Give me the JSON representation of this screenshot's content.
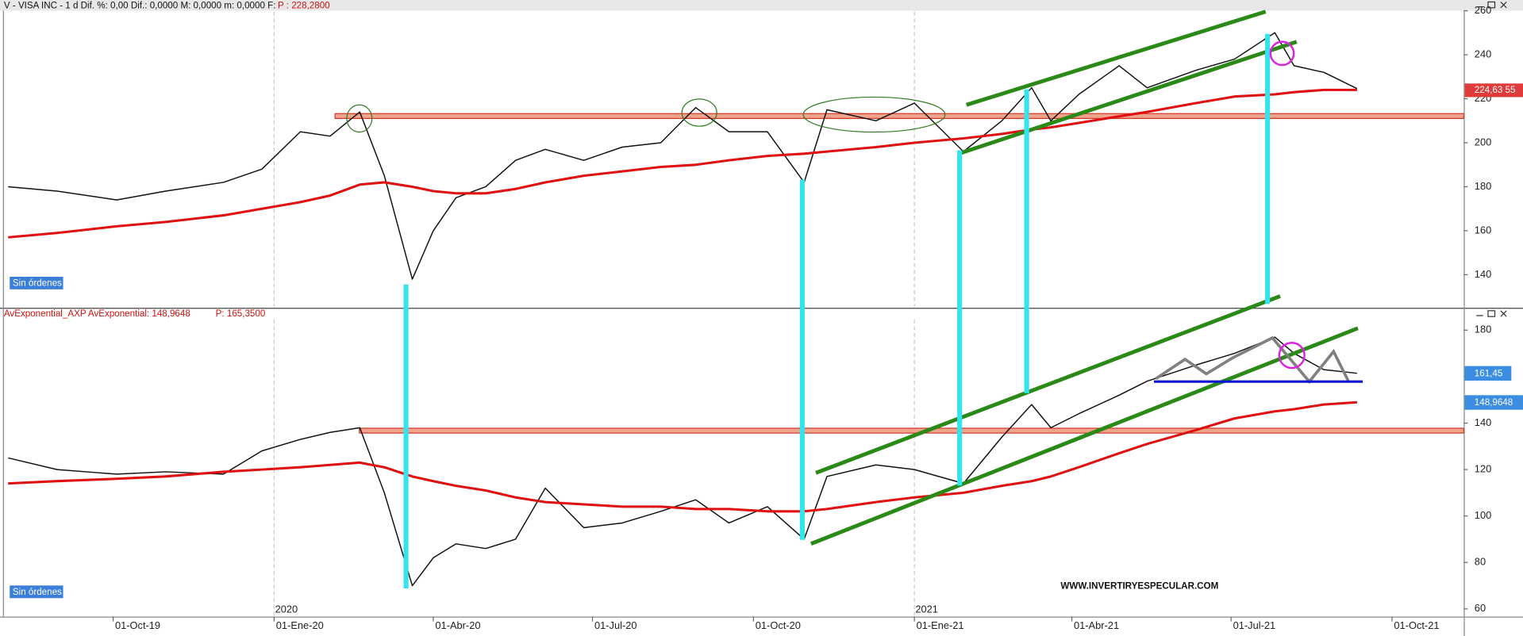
{
  "chart_data": [
    {
      "type": "line",
      "title": "V - VISA INC -  1 d  Dif. %: 0,00  Dif.: 0,0000  M: 0,0000  m: 0,0000  F:",
      "price_label": "P : 228,2800",
      "x": [
        "2019-08-02",
        "2019-08-30",
        "2019-10-03",
        "2019-10-31",
        "2019-12-03",
        "2019-12-25",
        "2020-01-16",
        "2020-02-02",
        "2020-02-19",
        "2020-03-04",
        "2020-03-20",
        "2020-04-01",
        "2020-04-14",
        "2020-05-01",
        "2020-05-18",
        "2020-06-04",
        "2020-06-26",
        "2020-07-18",
        "2020-08-09",
        "2020-08-29",
        "2020-09-17",
        "2020-10-09",
        "2020-10-30",
        "2020-11-12",
        "2020-12-10",
        "2021-01-01",
        "2021-01-29",
        "2021-02-20",
        "2021-03-09",
        "2021-03-20",
        "2021-04-05",
        "2021-04-28",
        "2021-05-14",
        "2021-06-11",
        "2021-07-03",
        "2021-07-26",
        "2021-08-06",
        "2021-08-23",
        "2021-09-11"
      ],
      "series": [
        {
          "color": "#111111",
          "values": [
            180,
            178,
            174,
            178,
            182,
            188,
            205,
            203,
            214,
            185,
            138,
            160,
            175,
            180,
            192,
            197,
            192,
            198,
            200,
            216,
            205,
            205,
            182,
            215,
            210,
            218,
            196,
            210,
            225,
            210,
            222,
            235,
            225,
            233,
            238,
            250,
            235,
            232,
            224.63
          ]
        },
        {
          "color": "#e01010",
          "values": [
            157,
            159,
            162,
            164,
            167,
            170,
            173,
            176,
            181,
            182,
            180,
            178,
            177,
            177,
            179,
            182,
            185,
            187,
            189,
            190,
            192,
            194,
            195,
            196,
            198,
            200,
            202,
            204,
            206,
            207,
            209,
            212,
            214,
            218,
            221,
            222,
            223,
            224,
            224
          ]
        }
      ],
      "xlim": [
        "2019-07-30",
        "2021-11-11"
      ],
      "ylim": [
        125.4,
        259.6
      ],
      "yticks": [
        140,
        160,
        180,
        200,
        220,
        240,
        260
      ],
      "price_tag": "224,63 55",
      "badge": "Sin órdenes"
    },
    {
      "type": "line",
      "title": "AvExponential_AXP AvExponential: 148,9648",
      "price_label": "P: 165,3500",
      "x": [
        "2019-08-02",
        "2019-08-30",
        "2019-10-03",
        "2019-10-31",
        "2019-12-03",
        "2019-12-25",
        "2020-01-16",
        "2020-02-02",
        "2020-02-19",
        "2020-03-04",
        "2020-03-20",
        "2020-04-01",
        "2020-04-14",
        "2020-05-01",
        "2020-05-18",
        "2020-06-04",
        "2020-06-26",
        "2020-07-18",
        "2020-08-09",
        "2020-08-29",
        "2020-09-17",
        "2020-10-09",
        "2020-10-30",
        "2020-11-12",
        "2020-12-10",
        "2021-01-01",
        "2021-01-29",
        "2021-02-20",
        "2021-03-09",
        "2021-03-20",
        "2021-04-05",
        "2021-04-28",
        "2021-05-14",
        "2021-06-11",
        "2021-07-03",
        "2021-07-26",
        "2021-08-06",
        "2021-08-23",
        "2021-09-11"
      ],
      "series": [
        {
          "color": "#111111",
          "values": [
            125,
            120,
            118,
            119,
            118,
            128,
            133,
            136,
            138,
            110,
            70,
            82,
            88,
            86,
            90,
            112,
            95,
            97,
            102,
            107,
            97,
            104,
            90,
            117,
            122,
            120,
            114,
            134,
            148,
            138,
            144,
            152,
            158,
            165,
            170,
            177,
            170,
            163,
            161.45
          ]
        },
        {
          "color": "#e01010",
          "values": [
            114,
            115,
            116,
            117,
            119,
            120,
            121,
            122,
            123,
            121,
            117,
            115,
            113,
            111,
            108,
            106,
            105,
            104,
            104,
            103,
            103,
            102,
            102,
            103,
            106,
            108,
            110,
            113,
            115,
            117,
            121,
            127,
            131,
            137,
            142,
            145,
            146,
            148,
            148.9648
          ]
        }
      ],
      "xlim": [
        "2019-07-30",
        "2021-11-11"
      ],
      "ylim": [
        56.7,
        184.6
      ],
      "yticks": [
        60,
        80,
        100,
        120,
        140,
        160,
        180
      ],
      "xticks": [
        {
          "value": "2019-10-01",
          "label": "01-Oct-19"
        },
        {
          "value": "2020-01-01",
          "label": "01-Ene-20"
        },
        {
          "value": "2020-04-01",
          "label": "01-Abr-20"
        },
        {
          "value": "2020-07-01",
          "label": "01-Jul-20"
        },
        {
          "value": "2020-10-01",
          "label": "01-Oct-20"
        },
        {
          "value": "2021-01-01",
          "label": "01-Ene-21"
        },
        {
          "value": "2021-04-01",
          "label": "01-Abr-21"
        },
        {
          "value": "2021-07-01",
          "label": "01-Jul-21"
        },
        {
          "value": "2021-10-01",
          "label": "01-Oct-21"
        }
      ],
      "year_ticks": [
        {
          "value": "2020-01-01",
          "label": "2020"
        },
        {
          "value": "2021-01-01",
          "label": "2021"
        }
      ],
      "price_tags": [
        "161,45",
        "148,9648"
      ],
      "badge": "Sin órdenes",
      "watermark": "WWW.INVERTIRYESPECULAR.COM"
    }
  ]
}
